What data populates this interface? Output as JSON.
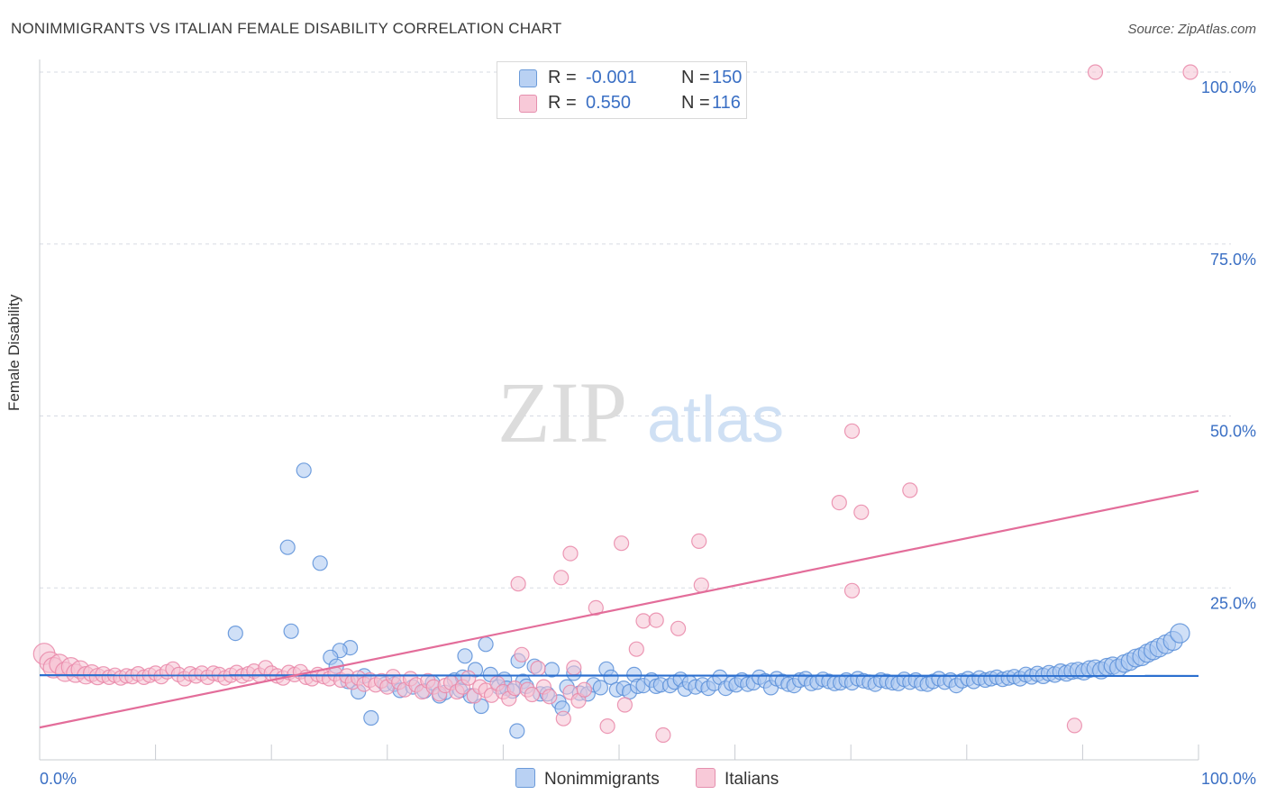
{
  "header": {
    "title": "NONIMMIGRANTS VS ITALIAN FEMALE DISABILITY CORRELATION CHART",
    "source": "Source: ZipAtlas.com"
  },
  "colors": {
    "blue": "#5b8fd8",
    "blue_fill": "#a9c6f0",
    "blue_line": "#2b6fcf",
    "pink": "#e987a8",
    "pink_fill": "#f6c2d3",
    "pink_line": "#e36d9a",
    "tick_text": "#3a6fc4",
    "grid": "#d7dbe3"
  },
  "watermark": {
    "zip": "ZIP",
    "atlas": "atlas"
  },
  "legend": {
    "r_label": "R =",
    "n_label": "N =",
    "series": [
      {
        "name": "Nonimmigrants",
        "r": "-0.001",
        "n": "150"
      },
      {
        "name": "Italians",
        "r": "0.550",
        "n": "116"
      }
    ]
  },
  "chart_data": {
    "type": "scatter",
    "title": "NONIMMIGRANTS VS ITALIAN FEMALE DISABILITY CORRELATION CHART",
    "xlabel": "",
    "ylabel": "Female Disability",
    "xlim": [
      0,
      100
    ],
    "ylim": [
      0,
      100
    ],
    "x_tick_labels": [
      "0.0%",
      "100.0%"
    ],
    "y_ticks": [
      25,
      50,
      75,
      100
    ],
    "y_tick_labels": [
      "25.0%",
      "50.0%",
      "75.0%",
      "100.0%"
    ],
    "grid": true,
    "legend_position": "top-center",
    "series": [
      {
        "name": "Nonimmigrants",
        "trend": {
          "x": [
            0,
            100
          ],
          "y": [
            12.3,
            12.2
          ]
        },
        "points": [
          [
            22.8,
            42.1
          ],
          [
            21.4,
            30.9
          ],
          [
            24.2,
            28.6
          ],
          [
            16.9,
            18.4
          ],
          [
            21.7,
            18.7
          ],
          [
            26.8,
            16.3
          ],
          [
            25.9,
            15.9
          ],
          [
            25.1,
            14.9
          ],
          [
            25.6,
            13.6
          ],
          [
            28.0,
            12.2
          ],
          [
            26.6,
            11.4
          ],
          [
            27.5,
            9.9
          ],
          [
            29.8,
            11.0
          ],
          [
            30.6,
            11.0
          ],
          [
            31.1,
            10.1
          ],
          [
            32.2,
            10.6
          ],
          [
            28.6,
            6.1
          ],
          [
            33.2,
            10.0
          ],
          [
            33.9,
            11.2
          ],
          [
            34.5,
            9.3
          ],
          [
            35.0,
            9.8
          ],
          [
            35.8,
            11.6
          ],
          [
            36.3,
            10.1
          ],
          [
            36.7,
            15.1
          ],
          [
            37.2,
            9.3
          ],
          [
            36.5,
            12.0
          ],
          [
            37.6,
            13.1
          ],
          [
            38.5,
            16.8
          ],
          [
            38.9,
            12.4
          ],
          [
            39.6,
            10.6
          ],
          [
            38.1,
            7.8
          ],
          [
            40.1,
            11.7
          ],
          [
            40.3,
            10.4
          ],
          [
            40.8,
            10.0
          ],
          [
            41.7,
            11.4
          ],
          [
            41.3,
            14.4
          ],
          [
            41.2,
            4.2
          ],
          [
            42.0,
            10.7
          ],
          [
            42.7,
            13.6
          ],
          [
            43.2,
            9.6
          ],
          [
            43.8,
            9.6
          ],
          [
            44.2,
            13.1
          ],
          [
            44.8,
            8.4
          ],
          [
            45.1,
            7.5
          ],
          [
            45.5,
            10.6
          ],
          [
            46.1,
            12.6
          ],
          [
            46.6,
            9.7
          ],
          [
            47.3,
            9.6
          ],
          [
            47.8,
            10.9
          ],
          [
            48.9,
            13.2
          ],
          [
            48.4,
            10.5
          ],
          [
            49.3,
            12.0
          ],
          [
            49.8,
            10.2
          ],
          [
            50.4,
            10.4
          ],
          [
            50.9,
            9.9
          ],
          [
            51.3,
            12.4
          ],
          [
            51.6,
            10.7
          ],
          [
            52.1,
            10.8
          ],
          [
            52.8,
            11.6
          ],
          [
            53.2,
            10.7
          ],
          [
            53.6,
            10.9
          ],
          [
            54.4,
            10.8
          ],
          [
            54.8,
            11.3
          ],
          [
            55.3,
            11.7
          ],
          [
            55.7,
            10.3
          ],
          [
            56.1,
            11.2
          ],
          [
            56.6,
            10.6
          ],
          [
            57.2,
            10.9
          ],
          [
            57.7,
            10.4
          ],
          [
            58.2,
            11.1
          ],
          [
            58.7,
            12.0
          ],
          [
            59.2,
            10.4
          ],
          [
            59.7,
            11.1
          ],
          [
            60.1,
            10.9
          ],
          [
            60.6,
            11.6
          ],
          [
            61.1,
            11.0
          ],
          [
            61.6,
            11.2
          ],
          [
            62.1,
            12.0
          ],
          [
            62.6,
            11.5
          ],
          [
            63.1,
            10.5
          ],
          [
            63.6,
            11.8
          ],
          [
            64.1,
            11.4
          ],
          [
            64.6,
            11.0
          ],
          [
            65.1,
            10.8
          ],
          [
            65.6,
            11.6
          ],
          [
            66.1,
            11.8
          ],
          [
            66.6,
            11.1
          ],
          [
            67.1,
            11.3
          ],
          [
            67.6,
            11.7
          ],
          [
            68.1,
            11.4
          ],
          [
            68.6,
            11.1
          ],
          [
            69.1,
            11.2
          ],
          [
            69.6,
            11.6
          ],
          [
            70.1,
            11.2
          ],
          [
            70.6,
            11.8
          ],
          [
            71.1,
            11.5
          ],
          [
            71.6,
            11.3
          ],
          [
            72.1,
            11.0
          ],
          [
            72.6,
            11.6
          ],
          [
            73.1,
            11.4
          ],
          [
            73.6,
            11.2
          ],
          [
            74.1,
            11.1
          ],
          [
            74.6,
            11.7
          ],
          [
            75.1,
            11.3
          ],
          [
            75.6,
            11.6
          ],
          [
            76.1,
            11.1
          ],
          [
            76.6,
            11.0
          ],
          [
            77.1,
            11.4
          ],
          [
            77.6,
            11.8
          ],
          [
            78.1,
            11.3
          ],
          [
            78.6,
            11.6
          ],
          [
            79.1,
            10.8
          ],
          [
            79.6,
            11.5
          ],
          [
            80.1,
            11.8
          ],
          [
            80.6,
            11.4
          ],
          [
            81.1,
            11.9
          ],
          [
            81.6,
            11.6
          ],
          [
            82.1,
            11.8
          ],
          [
            82.6,
            12.0
          ],
          [
            83.1,
            11.7
          ],
          [
            83.6,
            11.9
          ],
          [
            84.1,
            12.1
          ],
          [
            84.6,
            11.8
          ],
          [
            85.1,
            12.4
          ],
          [
            85.6,
            12.1
          ],
          [
            86.1,
            12.5
          ],
          [
            86.6,
            12.2
          ],
          [
            87.1,
            12.6
          ],
          [
            87.6,
            12.4
          ],
          [
            88.1,
            12.8
          ],
          [
            88.6,
            12.6
          ],
          [
            89.1,
            12.9
          ],
          [
            89.6,
            13.0
          ],
          [
            90.1,
            12.8
          ],
          [
            90.6,
            13.2
          ],
          [
            91.1,
            13.3
          ],
          [
            91.6,
            13.0
          ],
          [
            92.1,
            13.5
          ],
          [
            92.6,
            13.7
          ],
          [
            93.1,
            13.4
          ],
          [
            93.6,
            14.0
          ],
          [
            94.1,
            14.3
          ],
          [
            94.6,
            14.8
          ],
          [
            95.1,
            15.0
          ],
          [
            95.6,
            15.5
          ],
          [
            96.1,
            15.9
          ],
          [
            96.6,
            16.3
          ],
          [
            97.2,
            16.8
          ],
          [
            97.8,
            17.3
          ],
          [
            98.4,
            18.4
          ]
        ]
      },
      {
        "name": "Italians",
        "trend": {
          "x": [
            0,
            100
          ],
          "y": [
            4.7,
            39.1
          ]
        },
        "points": [
          [
            0.4,
            15.4
          ],
          [
            0.9,
            14.2
          ],
          [
            1.2,
            13.4
          ],
          [
            1.7,
            13.9
          ],
          [
            2.2,
            12.8
          ],
          [
            2.7,
            13.5
          ],
          [
            3.1,
            12.6
          ],
          [
            3.5,
            13.1
          ],
          [
            4.0,
            12.3
          ],
          [
            4.5,
            12.6
          ],
          [
            5.0,
            12.1
          ],
          [
            5.5,
            12.4
          ],
          [
            6.0,
            12.0
          ],
          [
            6.5,
            12.3
          ],
          [
            7.0,
            11.9
          ],
          [
            7.5,
            12.2
          ],
          [
            8.0,
            12.1
          ],
          [
            8.5,
            12.5
          ],
          [
            9.0,
            12.0
          ],
          [
            9.5,
            12.3
          ],
          [
            10.0,
            12.6
          ],
          [
            10.5,
            12.1
          ],
          [
            11.0,
            12.8
          ],
          [
            11.5,
            13.2
          ],
          [
            12.0,
            12.4
          ],
          [
            12.5,
            11.8
          ],
          [
            13.0,
            12.5
          ],
          [
            13.5,
            12.2
          ],
          [
            14.0,
            12.6
          ],
          [
            14.5,
            12.0
          ],
          [
            15.0,
            12.6
          ],
          [
            15.5,
            12.4
          ],
          [
            16.0,
            11.9
          ],
          [
            16.5,
            12.3
          ],
          [
            17.0,
            12.7
          ],
          [
            17.5,
            12.2
          ],
          [
            18.0,
            12.5
          ],
          [
            18.5,
            12.9
          ],
          [
            19.0,
            12.3
          ],
          [
            19.5,
            13.4
          ],
          [
            20.0,
            12.6
          ],
          [
            20.5,
            12.2
          ],
          [
            21.0,
            11.9
          ],
          [
            21.5,
            12.7
          ],
          [
            22.0,
            12.4
          ],
          [
            22.5,
            12.8
          ],
          [
            23.0,
            12.0
          ],
          [
            23.5,
            11.8
          ],
          [
            24.0,
            12.4
          ],
          [
            24.5,
            12.1
          ],
          [
            25.0,
            11.8
          ],
          [
            25.5,
            12.5
          ],
          [
            26.0,
            11.6
          ],
          [
            26.5,
            12.2
          ],
          [
            27.0,
            11.3
          ],
          [
            27.5,
            11.9
          ],
          [
            28.0,
            11.0
          ],
          [
            28.5,
            11.6
          ],
          [
            29.0,
            10.9
          ],
          [
            29.5,
            11.5
          ],
          [
            30.0,
            10.6
          ],
          [
            30.5,
            12.1
          ],
          [
            31.0,
            11.3
          ],
          [
            31.5,
            10.2
          ],
          [
            32.0,
            11.8
          ],
          [
            32.5,
            10.9
          ],
          [
            33.0,
            9.9
          ],
          [
            33.5,
            11.5
          ],
          [
            34.0,
            10.6
          ],
          [
            34.5,
            9.6
          ],
          [
            35.0,
            10.8
          ],
          [
            35.5,
            11.2
          ],
          [
            36.0,
            9.9
          ],
          [
            36.5,
            10.6
          ],
          [
            37.0,
            11.9
          ],
          [
            37.5,
            9.3
          ],
          [
            38.0,
            10.6
          ],
          [
            38.5,
            10.1
          ],
          [
            39.0,
            9.4
          ],
          [
            39.5,
            11.1
          ],
          [
            40.0,
            9.9
          ],
          [
            40.5,
            8.9
          ],
          [
            41.0,
            10.4
          ],
          [
            41.6,
            15.3
          ],
          [
            42.1,
            10.2
          ],
          [
            42.5,
            9.5
          ],
          [
            43.0,
            13.3
          ],
          [
            43.5,
            10.6
          ],
          [
            44.0,
            9.2
          ],
          [
            45.2,
            6.0
          ],
          [
            45.8,
            9.8
          ],
          [
            46.1,
            13.4
          ],
          [
            46.5,
            8.6
          ],
          [
            47.0,
            10.2
          ],
          [
            45.0,
            26.5
          ],
          [
            45.8,
            30.0
          ],
          [
            41.3,
            25.6
          ],
          [
            48.0,
            22.1
          ],
          [
            50.2,
            31.5
          ],
          [
            50.5,
            8.0
          ],
          [
            51.5,
            16.1
          ],
          [
            52.1,
            20.2
          ],
          [
            53.2,
            20.3
          ],
          [
            53.8,
            3.6
          ],
          [
            55.1,
            19.1
          ],
          [
            57.1,
            25.4
          ],
          [
            56.9,
            31.8
          ],
          [
            70.1,
            47.8
          ],
          [
            75.1,
            39.2
          ],
          [
            70.9,
            36.0
          ],
          [
            69.0,
            37.4
          ],
          [
            70.1,
            24.6
          ],
          [
            89.3,
            5.0
          ],
          [
            91.1,
            100.0
          ],
          [
            99.3,
            100.0
          ],
          [
            49.0,
            4.9
          ]
        ]
      }
    ]
  }
}
